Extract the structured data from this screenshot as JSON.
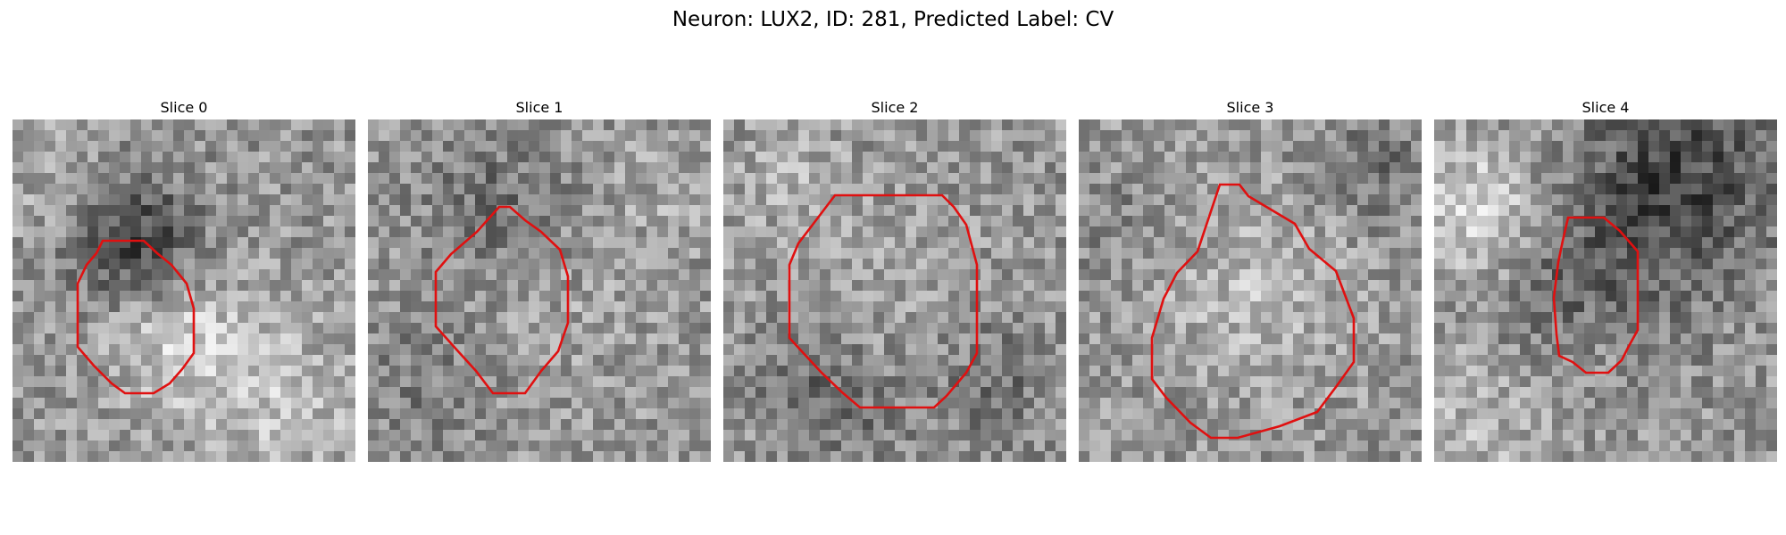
{
  "figure": {
    "title": "Neuron: LUX2, ID: 281, Predicted Label: CV"
  },
  "slices": [
    {
      "title": "Slice 0"
    },
    {
      "title": "Slice 1"
    },
    {
      "title": "Slice 2"
    },
    {
      "title": "Slice 3"
    },
    {
      "title": "Slice 4"
    }
  ],
  "colors": {
    "contour": "#e01010",
    "background": "#ffffff"
  },
  "colormap": "grayscale"
}
